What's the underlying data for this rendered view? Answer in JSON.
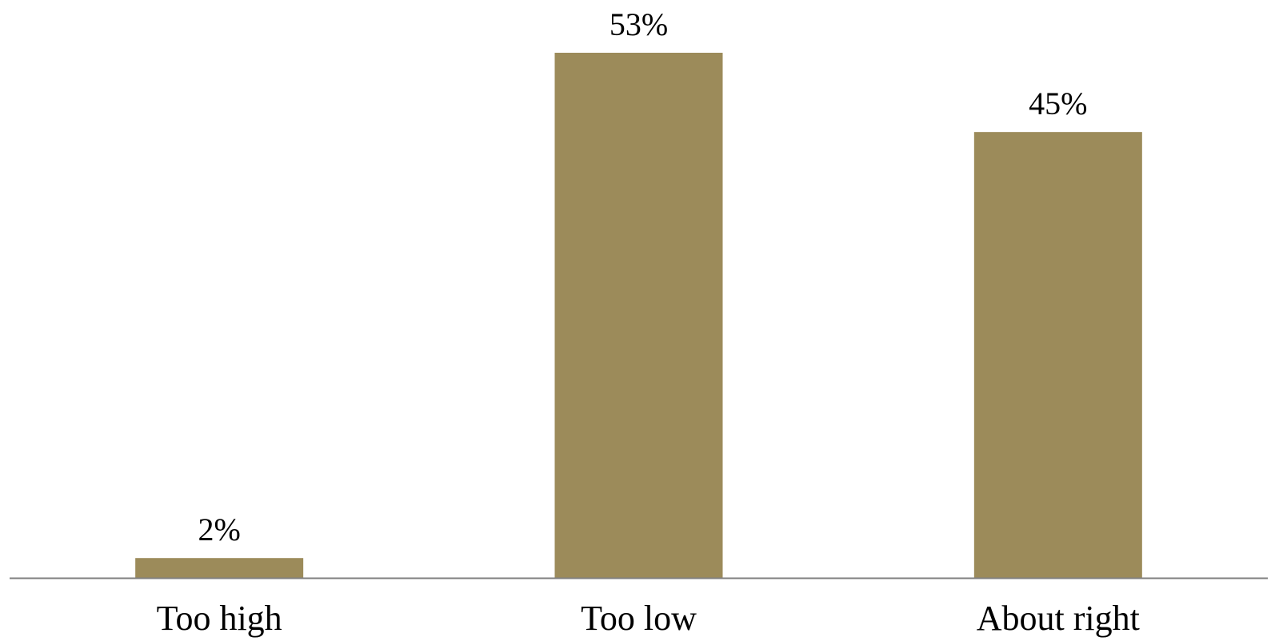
{
  "chart_data": {
    "type": "bar",
    "categories": [
      "Too high",
      "Too low",
      "About right"
    ],
    "values": [
      2,
      53,
      45
    ],
    "data_labels": [
      "2%",
      "53%",
      "45%"
    ],
    "title": "",
    "xlabel": "",
    "ylabel": "",
    "ylim": [
      0,
      53
    ],
    "grid": false,
    "legend": "none",
    "bar_color": "#9C8B5A",
    "axis_color": "#7F7F7F"
  }
}
